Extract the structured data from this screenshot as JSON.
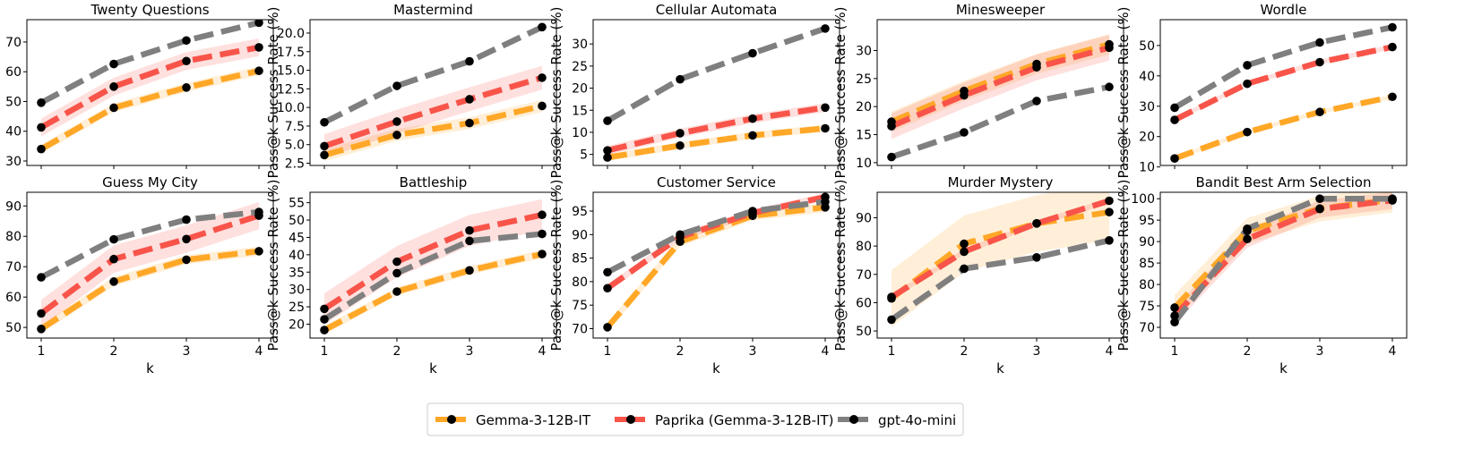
{
  "figure": {
    "ylabel": "Pass@k Success Rate (%)",
    "xlabel": "k",
    "xticks": [
      1,
      2,
      3,
      4
    ],
    "legend": [
      {
        "name": "Gemma-3-12B-IT",
        "color": "#ffa726"
      },
      {
        "name": "Paprika (Gemma-3-12B-IT)",
        "color": "#f8544a"
      },
      {
        "name": "gpt-4o-mini",
        "color": "#7f7f7f"
      }
    ]
  },
  "chart_data": [
    {
      "type": "line",
      "title": "Twenty Questions",
      "x": [
        1,
        2,
        3,
        4
      ],
      "ylim": [
        28.5,
        77.5
      ],
      "yticks": [
        "30",
        "40",
        "50",
        "60",
        "70"
      ],
      "ytick_values": [
        30,
        40,
        50,
        60,
        70
      ],
      "show_xlabel": false,
      "series": [
        {
          "name": "Gemma-3-12B-IT",
          "values": [
            34.0,
            47.9,
            54.7,
            60.3
          ],
          "band": 1.5
        },
        {
          "name": "Paprika (Gemma-3-12B-IT)",
          "values": [
            41.3,
            55.0,
            63.6,
            68.2
          ],
          "band": 3.0
        },
        {
          "name": "gpt-4o-mini",
          "values": [
            49.6,
            62.6,
            70.5,
            76.5
          ],
          "band": 0
        }
      ]
    },
    {
      "type": "line",
      "title": "Mastermind",
      "x": [
        1,
        2,
        3,
        4
      ],
      "ylim": [
        2.2,
        21.8
      ],
      "yticks": [
        "2.5",
        "5.0",
        "7.5",
        "10.0",
        "12.5",
        "15.0",
        "17.5",
        "20.0"
      ],
      "ytick_values": [
        2.5,
        5,
        7.5,
        10,
        12.5,
        15,
        17.5,
        20
      ],
      "show_xlabel": false,
      "series": [
        {
          "name": "Gemma-3-12B-IT",
          "values": [
            3.6,
            6.3,
            7.9,
            10.2
          ],
          "band": 0.8
        },
        {
          "name": "Paprika (Gemma-3-12B-IT)",
          "values": [
            4.8,
            8.1,
            11.1,
            14.0
          ],
          "band": 1.6
        },
        {
          "name": "gpt-4o-mini",
          "values": [
            8.0,
            12.9,
            16.2,
            20.8
          ],
          "band": 0
        }
      ]
    },
    {
      "type": "line",
      "title": "Cellular Automata",
      "x": [
        1,
        2,
        3,
        4
      ],
      "ylim": [
        2.5,
        35.5
      ],
      "yticks": [
        "5",
        "10",
        "15",
        "20",
        "25",
        "30"
      ],
      "ytick_values": [
        5,
        10,
        15,
        20,
        25,
        30
      ],
      "show_xlabel": false,
      "series": [
        {
          "name": "Gemma-3-12B-IT",
          "values": [
            4.3,
            7.0,
            9.3,
            10.9
          ],
          "band": 0.8
        },
        {
          "name": "Paprika (Gemma-3-12B-IT)",
          "values": [
            5.9,
            9.8,
            13.1,
            15.6
          ],
          "band": 1.0
        },
        {
          "name": "gpt-4o-mini",
          "values": [
            12.6,
            22.0,
            27.9,
            33.5
          ],
          "band": 0
        }
      ]
    },
    {
      "type": "line",
      "title": "Minesweeper",
      "x": [
        1,
        2,
        3,
        4
      ],
      "ylim": [
        9.5,
        35.5
      ],
      "yticks": [
        "10",
        "15",
        "20",
        "25",
        "30"
      ],
      "ytick_values": [
        10,
        15,
        20,
        25,
        30
      ],
      "show_xlabel": false,
      "series": [
        {
          "name": "Gemma-3-12B-IT",
          "values": [
            17.3,
            22.8,
            27.6,
            31.1
          ],
          "band": 1.8
        },
        {
          "name": "Paprika (Gemma-3-12B-IT)",
          "values": [
            16.5,
            22.0,
            27.0,
            30.5
          ],
          "band": 2.3
        },
        {
          "name": "gpt-4o-mini",
          "values": [
            11.0,
            15.4,
            21.0,
            23.5
          ],
          "band": 0
        }
      ]
    },
    {
      "type": "line",
      "title": "Wordle",
      "x": [
        1,
        2,
        3,
        4
      ],
      "ylim": [
        10.5,
        58.5
      ],
      "yticks": [
        "10",
        "20",
        "30",
        "40",
        "50"
      ],
      "ytick_values": [
        10,
        20,
        30,
        40,
        50
      ],
      "show_xlabel": false,
      "series": [
        {
          "name": "Gemma-3-12B-IT",
          "values": [
            12.8,
            21.5,
            28.1,
            33.1
          ],
          "band": 0.7
        },
        {
          "name": "Paprika (Gemma-3-12B-IT)",
          "values": [
            25.5,
            37.4,
            44.5,
            49.5
          ],
          "band": 0.8
        },
        {
          "name": "gpt-4o-mini",
          "values": [
            29.5,
            43.5,
            51.0,
            56.0
          ],
          "band": 0
        }
      ]
    },
    {
      "type": "line",
      "title": "Guess My City",
      "x": [
        1,
        2,
        3,
        4
      ],
      "ylim": [
        46.5,
        94.5
      ],
      "yticks": [
        "50",
        "60",
        "70",
        "80",
        "90"
      ],
      "ytick_values": [
        50,
        60,
        70,
        80,
        90
      ],
      "show_xlabel": true,
      "series": [
        {
          "name": "Gemma-3-12B-IT",
          "values": [
            49.5,
            65.1,
            72.3,
            75.1
          ],
          "band": 1.5
        },
        {
          "name": "Paprika (Gemma-3-12B-IT)",
          "values": [
            54.6,
            72.5,
            79.1,
            86.8
          ],
          "band": 4.5
        },
        {
          "name": "gpt-4o-mini",
          "values": [
            66.5,
            79.0,
            85.5,
            88.0
          ],
          "band": 0
        }
      ]
    },
    {
      "type": "line",
      "title": "Battleship",
      "x": [
        1,
        2,
        3,
        4
      ],
      "ylim": [
        16.0,
        58.0
      ],
      "yticks": [
        "20",
        "25",
        "30",
        "35",
        "40",
        "45",
        "50",
        "55"
      ],
      "ytick_values": [
        20,
        25,
        30,
        35,
        40,
        45,
        50,
        55
      ],
      "show_xlabel": true,
      "series": [
        {
          "name": "Gemma-3-12B-IT",
          "values": [
            18.3,
            29.4,
            35.5,
            40.2
          ],
          "band": 1.2
        },
        {
          "name": "Paprika (Gemma-3-12B-IT)",
          "values": [
            24.4,
            38.0,
            47.0,
            51.5
          ],
          "band": 4.5
        },
        {
          "name": "gpt-4o-mini",
          "values": [
            21.4,
            34.7,
            44.0,
            46.0
          ],
          "band": 0
        }
      ]
    },
    {
      "type": "line",
      "title": "Customer Service",
      "x": [
        1,
        2,
        3,
        4
      ],
      "ylim": [
        68.0,
        99.0
      ],
      "yticks": [
        "70",
        "75",
        "80",
        "85",
        "90",
        "95"
      ],
      "ytick_values": [
        70,
        75,
        80,
        85,
        90,
        95
      ],
      "show_xlabel": true,
      "series": [
        {
          "name": "Gemma-3-12B-IT",
          "values": [
            70.3,
            88.5,
            94.0,
            95.8
          ],
          "band": 1.0
        },
        {
          "name": "Paprika (Gemma-3-12B-IT)",
          "values": [
            78.6,
            89.5,
            94.6,
            98.0
          ],
          "band": 0.8
        },
        {
          "name": "gpt-4o-mini",
          "values": [
            82.0,
            90.0,
            95.0,
            97.0
          ],
          "band": 0
        }
      ]
    },
    {
      "type": "line",
      "title": "Murder Mystery",
      "x": [
        1,
        2,
        3,
        4
      ],
      "ylim": [
        47.5,
        99.0
      ],
      "yticks": [
        "50",
        "60",
        "70",
        "80",
        "90"
      ],
      "ytick_values": [
        50,
        60,
        70,
        80,
        90
      ],
      "show_xlabel": true,
      "series": [
        {
          "name": "Gemma-3-12B-IT",
          "values": [
            61.5,
            80.8,
            88.0,
            92.0
          ],
          "band": 10.0
        },
        {
          "name": "Paprika (Gemma-3-12B-IT)",
          "values": [
            62.0,
            78.0,
            88.0,
            96.0
          ],
          "band": 1.0
        },
        {
          "name": "gpt-4o-mini",
          "values": [
            54.0,
            72.0,
            76.0,
            82.0
          ],
          "band": 0
        }
      ]
    },
    {
      "type": "line",
      "title": "Bandit Best Arm Selection",
      "x": [
        1,
        2,
        3,
        4
      ],
      "ylim": [
        67.5,
        101.5
      ],
      "yticks": [
        "70",
        "75",
        "80",
        "85",
        "90",
        "95",
        "100"
      ],
      "ytick_values": [
        70,
        75,
        80,
        85,
        90,
        95,
        100
      ],
      "show_xlabel": true,
      "series": [
        {
          "name": "Gemma-3-12B-IT",
          "values": [
            74.6,
            92.5,
            97.7,
            99.8
          ],
          "band": 3.0
        },
        {
          "name": "Paprika (Gemma-3-12B-IT)",
          "values": [
            72.7,
            90.6,
            97.6,
            99.6
          ],
          "band": 2.0
        },
        {
          "name": "gpt-4o-mini",
          "values": [
            71.2,
            93.0,
            100.0,
            100.0
          ],
          "band": 0
        }
      ]
    }
  ]
}
